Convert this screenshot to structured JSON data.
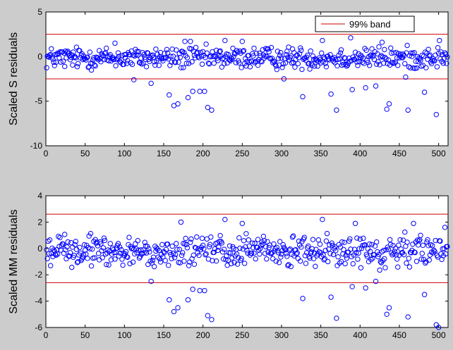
{
  "chart_data": [
    {
      "type": "scatter",
      "ylabel": "Scaled S residuals",
      "xlim": [
        0,
        512
      ],
      "ylim": [
        -10,
        5
      ],
      "xticks": [
        0,
        50,
        100,
        150,
        200,
        250,
        300,
        350,
        400,
        450,
        500
      ],
      "yticks": [
        -10,
        -5,
        0,
        5
      ],
      "band": {
        "lower": -2.5,
        "upper": 2.5,
        "color": "#cc0000",
        "label": "99% band"
      },
      "marker_color": "#0000ff",
      "legend": {
        "entries": [
          "99% band"
        ],
        "location": "top-right"
      },
      "outliers": [
        {
          "x": 157,
          "y": -4.3
        },
        {
          "x": 163,
          "y": -5.5
        },
        {
          "x": 168,
          "y": -5.3
        },
        {
          "x": 181,
          "y": -4.6
        },
        {
          "x": 187,
          "y": -3.9
        },
        {
          "x": 196,
          "y": -3.9
        },
        {
          "x": 202,
          "y": -3.9
        },
        {
          "x": 206,
          "y": -5.7
        },
        {
          "x": 211,
          "y": -6.0
        },
        {
          "x": 134,
          "y": -3.0
        },
        {
          "x": 112,
          "y": -2.6
        },
        {
          "x": 303,
          "y": -2.5
        },
        {
          "x": 327,
          "y": -4.5
        },
        {
          "x": 363,
          "y": -4.2
        },
        {
          "x": 370,
          "y": -6.0
        },
        {
          "x": 390,
          "y": -3.7
        },
        {
          "x": 407,
          "y": -3.5
        },
        {
          "x": 420,
          "y": -3.3
        },
        {
          "x": 434,
          "y": -5.9
        },
        {
          "x": 437,
          "y": -5.3
        },
        {
          "x": 461,
          "y": -6.0
        },
        {
          "x": 482,
          "y": -4.0
        },
        {
          "x": 497,
          "y": -6.5
        },
        {
          "x": 458,
          "y": -2.3
        }
      ],
      "high_points": [
        {
          "x": 88,
          "y": 1.5
        },
        {
          "x": 177,
          "y": 1.7
        },
        {
          "x": 184,
          "y": 1.7
        },
        {
          "x": 228,
          "y": 1.8
        },
        {
          "x": 250,
          "y": 1.7
        },
        {
          "x": 352,
          "y": 1.8
        },
        {
          "x": 388,
          "y": 2.1
        },
        {
          "x": 428,
          "y": 1.6
        },
        {
          "x": 501,
          "y": 1.8
        }
      ]
    },
    {
      "type": "scatter",
      "ylabel": "Scaled MM residuals",
      "xlim": [
        0,
        512
      ],
      "ylim": [
        -6,
        4
      ],
      "xticks": [
        0,
        50,
        100,
        150,
        200,
        250,
        300,
        350,
        400,
        450,
        500
      ],
      "yticks": [
        -6,
        -4,
        -2,
        0,
        2,
        4
      ],
      "band": {
        "lower": -2.6,
        "upper": 2.6,
        "color": "#cc0000"
      },
      "marker_color": "#0000ff",
      "outliers": [
        {
          "x": 157,
          "y": -3.9
        },
        {
          "x": 163,
          "y": -4.8
        },
        {
          "x": 168,
          "y": -4.5
        },
        {
          "x": 181,
          "y": -3.9
        },
        {
          "x": 187,
          "y": -3.1
        },
        {
          "x": 196,
          "y": -3.2
        },
        {
          "x": 202,
          "y": -3.2
        },
        {
          "x": 206,
          "y": -5.1
        },
        {
          "x": 211,
          "y": -5.4
        },
        {
          "x": 134,
          "y": -2.5
        },
        {
          "x": 327,
          "y": -3.8
        },
        {
          "x": 363,
          "y": -3.7
        },
        {
          "x": 370,
          "y": -5.3
        },
        {
          "x": 390,
          "y": -2.9
        },
        {
          "x": 407,
          "y": -3.0
        },
        {
          "x": 420,
          "y": -2.5
        },
        {
          "x": 434,
          "y": -5.0
        },
        {
          "x": 437,
          "y": -4.5
        },
        {
          "x": 461,
          "y": -5.2
        },
        {
          "x": 482,
          "y": -3.5
        },
        {
          "x": 497,
          "y": -5.8
        },
        {
          "x": 500,
          "y": -6.0
        }
      ],
      "high_points": [
        {
          "x": 172,
          "y": 2.0
        },
        {
          "x": 228,
          "y": 2.2
        },
        {
          "x": 250,
          "y": 1.9
        },
        {
          "x": 352,
          "y": 2.2
        },
        {
          "x": 394,
          "y": 1.9
        },
        {
          "x": 468,
          "y": 1.9
        },
        {
          "x": 508,
          "y": 1.6
        }
      ]
    }
  ]
}
